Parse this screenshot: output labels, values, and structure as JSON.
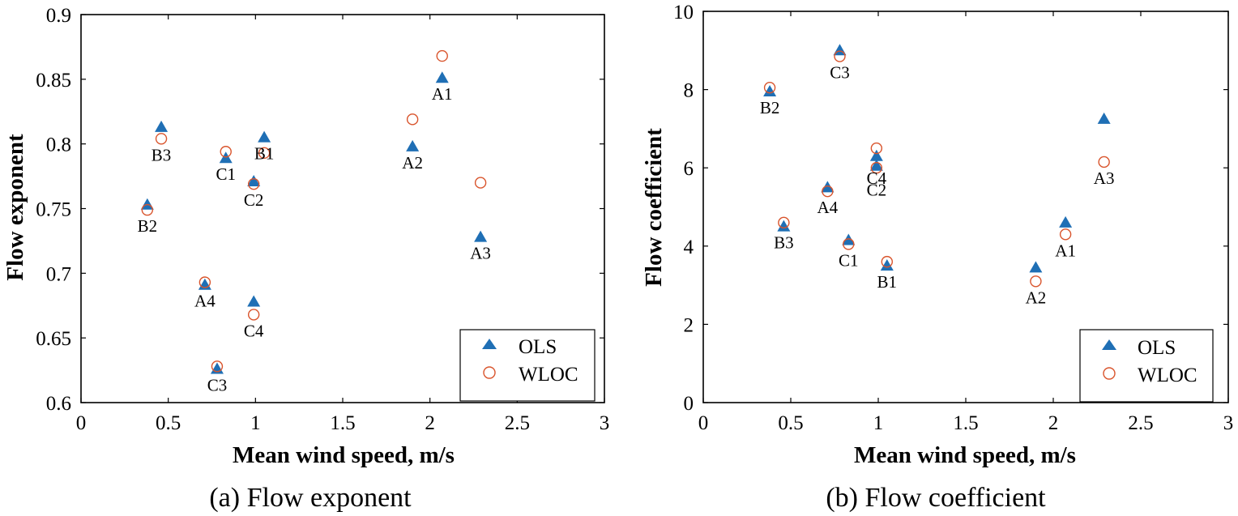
{
  "colors": {
    "ols": "#1f6fb5",
    "wloc": "#d9542c",
    "axis": "#000000"
  },
  "chart_data": [
    {
      "type": "scatter",
      "caption": "(a) Flow exponent",
      "xlabel": "Mean wind speed, m/s",
      "ylabel": "Flow exponent",
      "xlim": [
        0,
        3
      ],
      "ylim": [
        0.6,
        0.9
      ],
      "xticks": [
        0,
        0.5,
        1,
        1.5,
        2,
        2.5,
        3
      ],
      "xtick_labels": [
        "0",
        "0.5",
        "1",
        "1.5",
        "2",
        "2.5",
        "3"
      ],
      "yticks": [
        0.6,
        0.65,
        0.7,
        0.75,
        0.8,
        0.85,
        0.9
      ],
      "ytick_labels": [
        "0.6",
        "0.65",
        "0.7",
        "0.75",
        "0.8",
        "0.85",
        "0.9"
      ],
      "legend_position": "bottom-right",
      "series": [
        {
          "name": "OLS",
          "marker": "triangle",
          "points": [
            {
              "label": "A1",
              "x": 2.07,
              "y": 0.851
            },
            {
              "label": "A2",
              "x": 1.9,
              "y": 0.798
            },
            {
              "label": "A3",
              "x": 2.29,
              "y": 0.728
            },
            {
              "label": "A4",
              "x": 0.71,
              "y": 0.691
            },
            {
              "label": "B1",
              "x": 1.05,
              "y": 0.805
            },
            {
              "label": "B2",
              "x": 0.38,
              "y": 0.753
            },
            {
              "label": "B3",
              "x": 0.46,
              "y": 0.813
            },
            {
              "label": "C1",
              "x": 0.83,
              "y": 0.789
            },
            {
              "label": "C2",
              "x": 0.99,
              "y": 0.771
            },
            {
              "label": "C3",
              "x": 0.78,
              "y": 0.626
            },
            {
              "label": "C4",
              "x": 0.99,
              "y": 0.678
            }
          ]
        },
        {
          "name": "WLOC",
          "marker": "circle",
          "points": [
            {
              "label": "A1",
              "x": 2.07,
              "y": 0.868
            },
            {
              "label": "A2",
              "x": 1.9,
              "y": 0.819
            },
            {
              "label": "A3",
              "x": 2.29,
              "y": 0.77
            },
            {
              "label": "A4",
              "x": 0.71,
              "y": 0.693
            },
            {
              "label": "B1",
              "x": 1.05,
              "y": 0.793
            },
            {
              "label": "B2",
              "x": 0.38,
              "y": 0.749
            },
            {
              "label": "B3",
              "x": 0.46,
              "y": 0.804
            },
            {
              "label": "C1",
              "x": 0.83,
              "y": 0.794
            },
            {
              "label": "C2",
              "x": 0.99,
              "y": 0.769
            },
            {
              "label": "C3",
              "x": 0.78,
              "y": 0.628
            },
            {
              "label": "C4",
              "x": 0.99,
              "y": 0.668
            }
          ]
        }
      ],
      "annotations": [
        {
          "text": "A1",
          "x": 2.07,
          "y": 0.851,
          "anchor": "below"
        },
        {
          "text": "A2",
          "x": 1.9,
          "y": 0.798,
          "anchor": "below"
        },
        {
          "text": "A3",
          "x": 2.29,
          "y": 0.728,
          "anchor": "below"
        },
        {
          "text": "A4",
          "x": 0.71,
          "y": 0.691,
          "anchor": "below"
        },
        {
          "text": "B1",
          "x": 1.05,
          "y": 0.805,
          "anchor": "below"
        },
        {
          "text": "B2",
          "x": 0.38,
          "y": 0.749,
          "anchor": "below"
        },
        {
          "text": "B3",
          "x": 0.46,
          "y": 0.804,
          "anchor": "below"
        },
        {
          "text": "C1",
          "x": 0.83,
          "y": 0.789,
          "anchor": "below"
        },
        {
          "text": "C2",
          "x": 0.99,
          "y": 0.769,
          "anchor": "below"
        },
        {
          "text": "C3",
          "x": 0.78,
          "y": 0.626,
          "anchor": "below"
        },
        {
          "text": "C4",
          "x": 0.99,
          "y": 0.668,
          "anchor": "below"
        }
      ]
    },
    {
      "type": "scatter",
      "caption": "(b) Flow coefficient",
      "xlabel": "Mean wind speed, m/s",
      "ylabel": "Flow coefficient",
      "xlim": [
        0,
        3
      ],
      "ylim": [
        0,
        10
      ],
      "xticks": [
        0,
        0.5,
        1,
        1.5,
        2,
        2.5,
        3
      ],
      "xtick_labels": [
        "0",
        "0.5",
        "1",
        "1.5",
        "2",
        "2.5",
        "3"
      ],
      "yticks": [
        0,
        2,
        4,
        6,
        8,
        10
      ],
      "ytick_labels": [
        "0",
        "2",
        "4",
        "6",
        "8",
        "10"
      ],
      "legend_position": "bottom-right",
      "series": [
        {
          "name": "OLS",
          "marker": "triangle",
          "points": [
            {
              "label": "A1",
              "x": 2.07,
              "y": 4.6
            },
            {
              "label": "A2",
              "x": 1.9,
              "y": 3.45
            },
            {
              "label": "A3",
              "x": 2.29,
              "y": 7.25
            },
            {
              "label": "A4",
              "x": 0.71,
              "y": 5.5
            },
            {
              "label": "B1",
              "x": 1.05,
              "y": 3.5
            },
            {
              "label": "B2",
              "x": 0.38,
              "y": 7.95
            },
            {
              "label": "B3",
              "x": 0.46,
              "y": 4.5
            },
            {
              "label": "C1",
              "x": 0.83,
              "y": 4.15
            },
            {
              "label": "C2",
              "x": 0.99,
              "y": 6.05
            },
            {
              "label": "C3",
              "x": 0.78,
              "y": 9.0
            },
            {
              "label": "C4",
              "x": 0.99,
              "y": 6.3
            }
          ]
        },
        {
          "name": "WLOC",
          "marker": "circle",
          "points": [
            {
              "label": "A1",
              "x": 2.07,
              "y": 4.3
            },
            {
              "label": "A2",
              "x": 1.9,
              "y": 3.1
            },
            {
              "label": "A3",
              "x": 2.29,
              "y": 6.15
            },
            {
              "label": "A4",
              "x": 0.71,
              "y": 5.4
            },
            {
              "label": "B1",
              "x": 1.05,
              "y": 3.6
            },
            {
              "label": "B2",
              "x": 0.38,
              "y": 8.05
            },
            {
              "label": "B3",
              "x": 0.46,
              "y": 4.6
            },
            {
              "label": "C1",
              "x": 0.83,
              "y": 4.05
            },
            {
              "label": "C2",
              "x": 0.99,
              "y": 6.0
            },
            {
              "label": "C3",
              "x": 0.78,
              "y": 8.85
            },
            {
              "label": "C4",
              "x": 0.99,
              "y": 6.5
            }
          ]
        }
      ],
      "annotations": [
        {
          "text": "A1",
          "x": 2.07,
          "y": 4.3,
          "anchor": "below"
        },
        {
          "text": "A2",
          "x": 1.9,
          "y": 3.1,
          "anchor": "below"
        },
        {
          "text": "A3",
          "x": 2.29,
          "y": 6.15,
          "anchor": "below"
        },
        {
          "text": "A4",
          "x": 0.71,
          "y": 5.4,
          "anchor": "below"
        },
        {
          "text": "B1",
          "x": 1.05,
          "y": 3.5,
          "anchor": "below"
        },
        {
          "text": "B2",
          "x": 0.38,
          "y": 7.95,
          "anchor": "below"
        },
        {
          "text": "B3",
          "x": 0.46,
          "y": 4.5,
          "anchor": "below"
        },
        {
          "text": "C1",
          "x": 0.83,
          "y": 4.05,
          "anchor": "below"
        },
        {
          "text": "C2",
          "x": 0.99,
          "y": 5.85,
          "anchor": "below"
        },
        {
          "text": "C3",
          "x": 0.78,
          "y": 8.85,
          "anchor": "below"
        },
        {
          "text": "C4",
          "x": 0.99,
          "y": 6.15,
          "anchor": "below"
        }
      ]
    }
  ]
}
